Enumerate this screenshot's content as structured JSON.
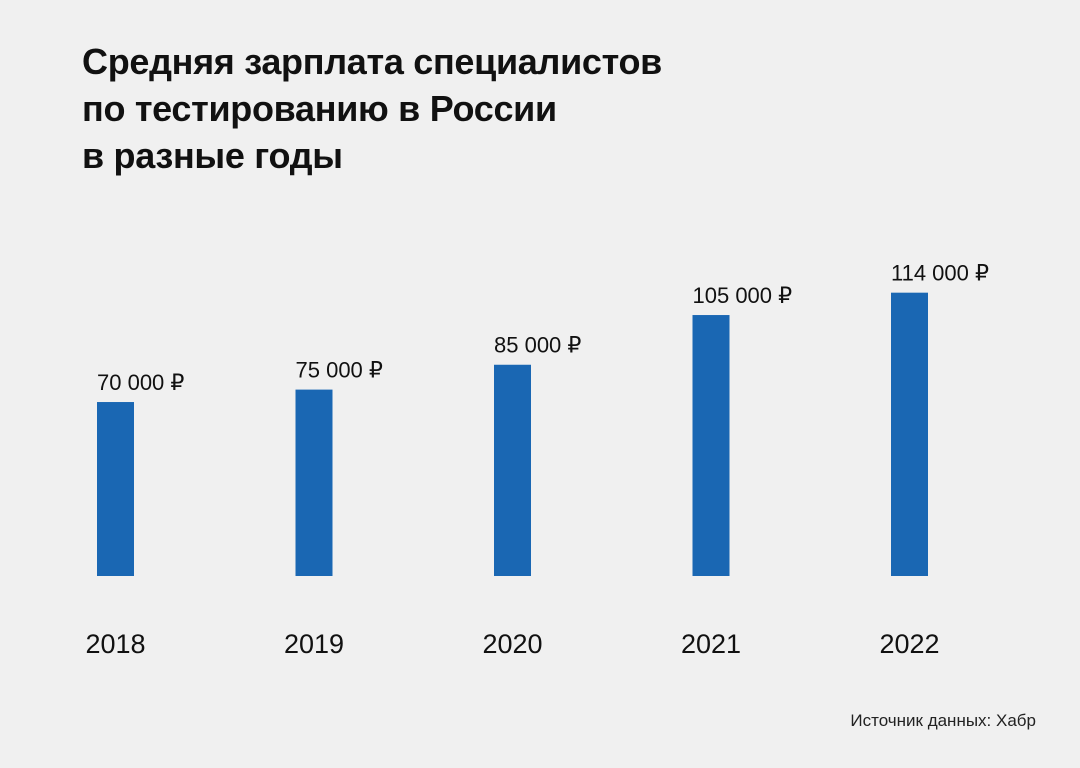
{
  "title_lines": [
    "Средняя зарплата специалистов",
    "по тестированию в России",
    "в разные годы"
  ],
  "source": "Источник данных: Хабр",
  "colors": {
    "bar": "#1a67b3",
    "background": "#f0f0f0",
    "text": "#111111"
  },
  "chart_data": {
    "type": "bar",
    "categories": [
      "2018",
      "2019",
      "2020",
      "2021",
      "2022"
    ],
    "values": [
      70000,
      75000,
      85000,
      105000,
      114000
    ],
    "value_labels": [
      "70 000 ₽",
      "75 000 ₽",
      "85 000 ₽",
      "105 000 ₽",
      "114 000 ₽"
    ],
    "title": "Средняя зарплата специалистов по тестированию в России в разные годы",
    "xlabel": "",
    "ylabel": "",
    "grid": false,
    "legend": "none"
  }
}
